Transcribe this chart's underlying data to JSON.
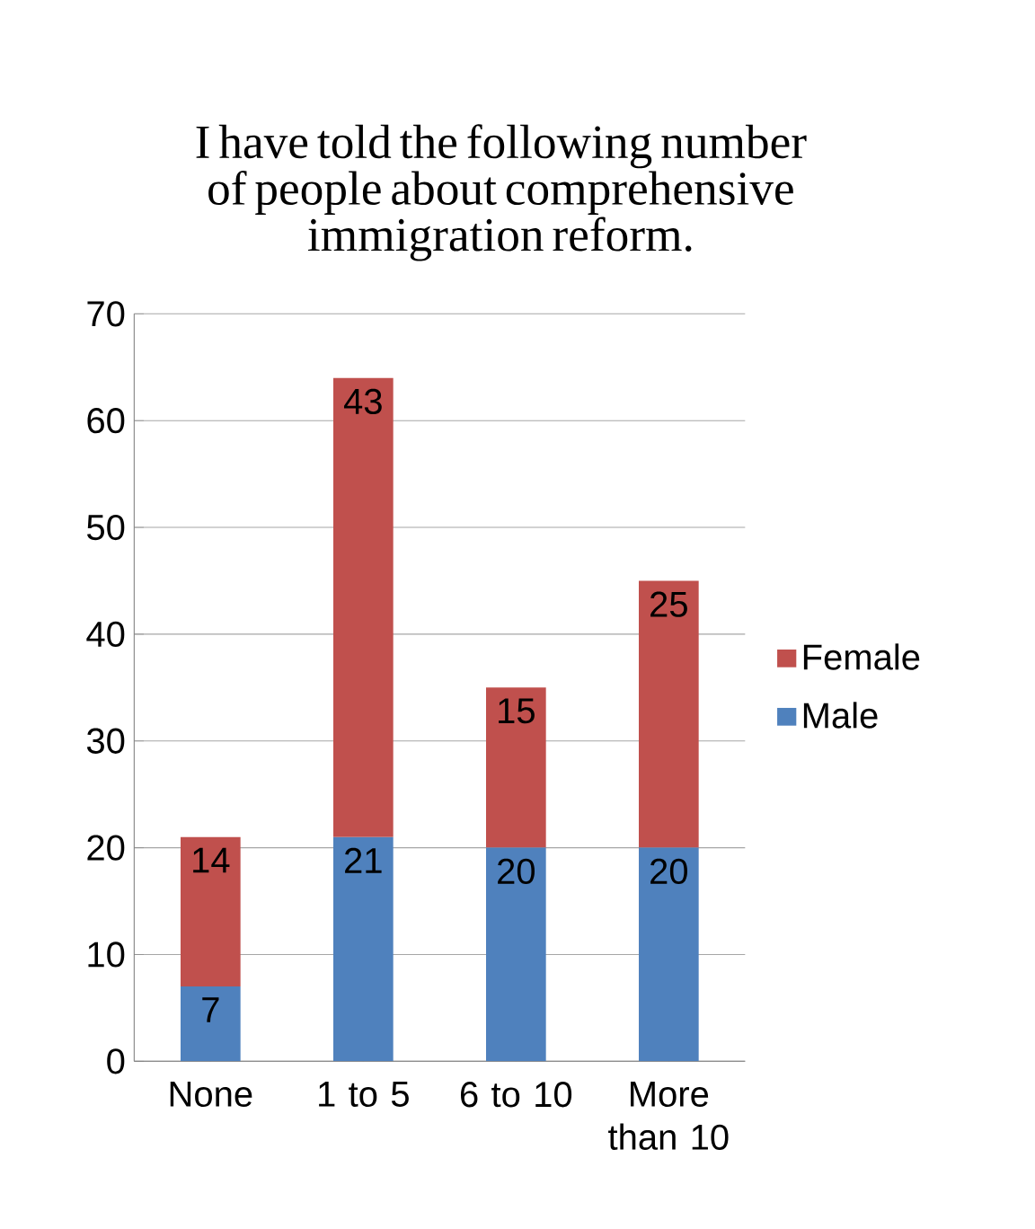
{
  "chart_data": {
    "type": "bar",
    "title": "I have told the following number of people about comprehensive immigration reform.",
    "categories": [
      "None",
      "1 to 5",
      "6 to 10",
      "More than 10"
    ],
    "series": [
      {
        "name": "Male",
        "color": "#4f81bd",
        "values": [
          7,
          21,
          20,
          20
        ]
      },
      {
        "name": "Female",
        "color": "#c0504d",
        "values": [
          14,
          43,
          15,
          25
        ]
      }
    ],
    "stacked": true,
    "data_labels": true,
    "ylim": [
      0,
      70
    ],
    "yticks": [
      0,
      10,
      20,
      30,
      40,
      50,
      60,
      70
    ],
    "grid": "y",
    "legend": "right"
  }
}
